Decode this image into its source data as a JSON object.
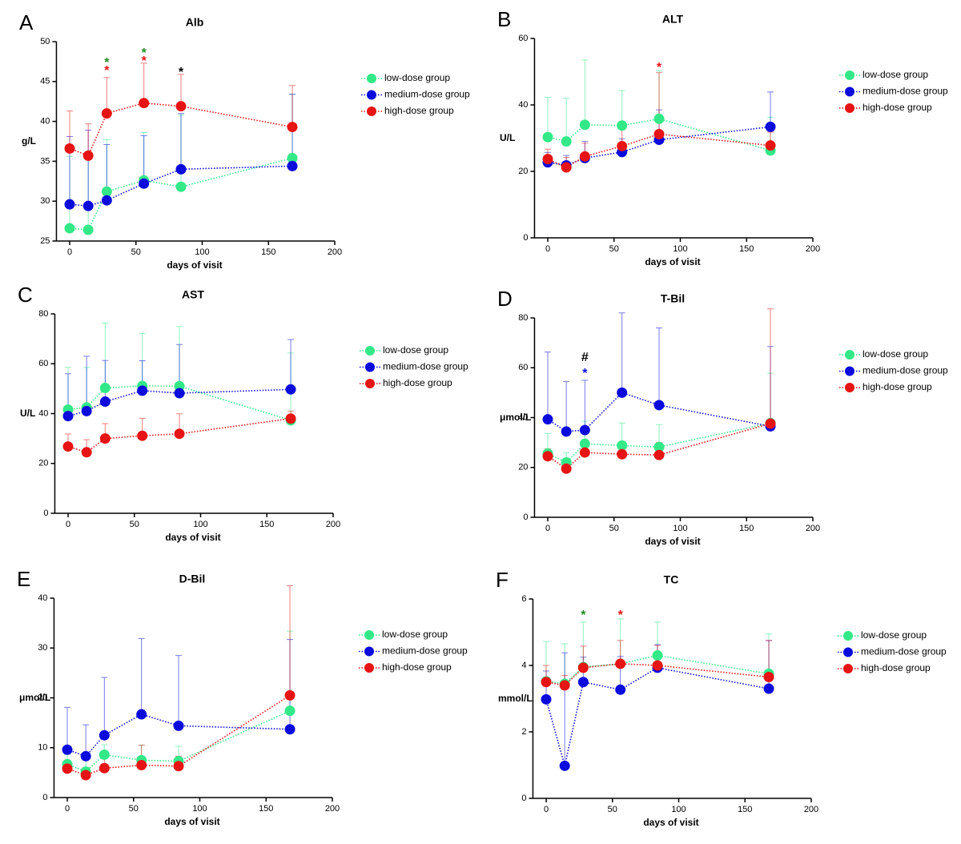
{
  "chart_data": [
    {
      "type": "line",
      "panel_label": "A",
      "title": "Alb",
      "xlabel": "days of visit",
      "ylabel": "g/L",
      "x": [
        0,
        14,
        28,
        56,
        84,
        168
      ],
      "xlim": [
        -10,
        200
      ],
      "xticks": [
        0,
        50,
        100,
        150,
        200
      ],
      "ylim": [
        25,
        50
      ],
      "yticks": [
        25,
        30,
        35,
        40,
        45,
        50
      ],
      "series": [
        {
          "name": "low-dose group",
          "color": "#33e887",
          "values": [
            26.6,
            26.4,
            31.2,
            32.6,
            31.8,
            35.4
          ],
          "errors": [
            9,
            9,
            6.5,
            6,
            9,
            8
          ]
        },
        {
          "name": "medium-dose group",
          "color": "#0b0bdc",
          "values": [
            29.6,
            29.4,
            30.1,
            32.2,
            34.0,
            34.4
          ],
          "errors": [
            8.5,
            9.5,
            7,
            6,
            7,
            9
          ]
        },
        {
          "name": "high-dose group",
          "color": "#e61414",
          "values": [
            36.6,
            35.7,
            41.0,
            42.3,
            41.9,
            39.3
          ],
          "errors": [
            4.7,
            4,
            4.5,
            5,
            4,
            5.2
          ]
        }
      ],
      "annotations": [
        {
          "text": "*",
          "x": 28,
          "y": 47.6,
          "color": "#228b22"
        },
        {
          "text": "*",
          "x": 28,
          "y": 46.6,
          "color": "#e61414"
        },
        {
          "text": "*",
          "x": 56,
          "y": 48.8,
          "color": "#228b22"
        },
        {
          "text": "*",
          "x": 56,
          "y": 47.8,
          "color": "#e61414"
        },
        {
          "text": "*",
          "x": 84,
          "y": 46.4,
          "color": "#000000"
        }
      ]
    },
    {
      "type": "line",
      "panel_label": "B",
      "title": "ALT",
      "xlabel": "days of visit",
      "ylabel": "U/L",
      "x": [
        0,
        14,
        28,
        56,
        84,
        168
      ],
      "xlim": [
        -10,
        200
      ],
      "xticks": [
        0,
        50,
        100,
        150,
        200
      ],
      "ylim": [
        0,
        60
      ],
      "yticks": [
        0,
        20,
        40,
        60
      ],
      "series": [
        {
          "name": "low-dose group",
          "color": "#33e887",
          "values": [
            30.3,
            29,
            34,
            33.8,
            35.8,
            26.3
          ],
          "errors": [
            12,
            13,
            19.5,
            10.5,
            14.5,
            10
          ]
        },
        {
          "name": "medium-dose group",
          "color": "#0b0bdc",
          "values": [
            22.7,
            21.8,
            24,
            25.8,
            29.5,
            33.4
          ],
          "errors": [
            3,
            3,
            5,
            4,
            9,
            10.5
          ]
        },
        {
          "name": "high-dose group",
          "color": "#e61414",
          "values": [
            23.7,
            21.2,
            24.5,
            27.6,
            31.2,
            27.8
          ],
          "errors": [
            3,
            3,
            4,
            5,
            18.5,
            4
          ]
        }
      ],
      "annotations": [
        {
          "text": "*",
          "x": 84,
          "y": 51.8,
          "color": "#e61414"
        }
      ]
    },
    {
      "type": "line",
      "panel_label": "C",
      "title": "AST",
      "xlabel": "days of visit",
      "ylabel": "U/L",
      "x": [
        0,
        14,
        28,
        56,
        84,
        168
      ],
      "xlim": [
        -10,
        200
      ],
      "xticks": [
        0,
        50,
        100,
        150,
        200
      ],
      "ylim": [
        0,
        80
      ],
      "yticks": [
        0,
        20,
        40,
        60,
        80
      ],
      "series": [
        {
          "name": "low-dose group",
          "color": "#33e887",
          "values": [
            41.6,
            42.5,
            50.3,
            51.1,
            51.0,
            37.3
          ],
          "errors": [
            17,
            16,
            26,
            21,
            24,
            27
          ]
        },
        {
          "name": "medium-dose group",
          "color": "#0b0bdc",
          "values": [
            39,
            41,
            44.8,
            49.2,
            48.2,
            49.7
          ],
          "errors": [
            17,
            22,
            16.5,
            12,
            19.5,
            20
          ]
        },
        {
          "name": "high-dose group",
          "color": "#e61414",
          "values": [
            26.8,
            24.5,
            30,
            31.1,
            31.9,
            38
          ],
          "errors": [
            5,
            5,
            6,
            7,
            8,
            3
          ]
        }
      ],
      "annotations": []
    },
    {
      "type": "line",
      "panel_label": "D",
      "title": "T-Bil",
      "xlabel": "days of visit",
      "ylabel": "μmol/L",
      "x": [
        0,
        14,
        28,
        56,
        84,
        168
      ],
      "xlim": [
        -10,
        200
      ],
      "xticks": [
        0,
        50,
        100,
        150,
        200
      ],
      "ylim": [
        0,
        80
      ],
      "yticks": [
        0,
        20,
        40,
        60,
        80
      ],
      "series": [
        {
          "name": "low-dose group",
          "color": "#33e887",
          "values": [
            25.6,
            22,
            29.5,
            28.8,
            28.2,
            37.8
          ],
          "errors": [
            8,
            4,
            9,
            9,
            9,
            20
          ]
        },
        {
          "name": "medium-dose group",
          "color": "#0b0bdc",
          "values": [
            39.3,
            34.4,
            35,
            50,
            45,
            36.5
          ],
          "errors": [
            27,
            20,
            20,
            32,
            31,
            32
          ]
        },
        {
          "name": "high-dose group",
          "color": "#e61414",
          "values": [
            24.5,
            19.5,
            26,
            25.3,
            25,
            37.6
          ],
          "errors": [
            3,
            3,
            3,
            5,
            5,
            46
          ]
        }
      ],
      "annotations": [
        {
          "text": "#",
          "x": 28,
          "y": 64,
          "color": "#000000"
        },
        {
          "text": "*",
          "x": 28,
          "y": 58.5,
          "color": "#0b0bdc"
        }
      ]
    },
    {
      "type": "line",
      "panel_label": "E",
      "title": "D-Bil",
      "xlabel": "days of visit",
      "ylabel": "μmol/L",
      "x": [
        0,
        14,
        28,
        56,
        84,
        168
      ],
      "xlim": [
        -10,
        200
      ],
      "xticks": [
        0,
        50,
        100,
        150,
        200
      ],
      "ylim": [
        0,
        40
      ],
      "yticks": [
        0,
        10,
        20,
        30,
        40
      ],
      "series": [
        {
          "name": "low-dose group",
          "color": "#33e887",
          "values": [
            6.7,
            5.2,
            8.6,
            7.5,
            7.3,
            17.4
          ],
          "errors": [
            2,
            3,
            2,
            3,
            3,
            16
          ]
        },
        {
          "name": "medium-dose group",
          "color": "#0b0bdc",
          "values": [
            9.6,
            8.3,
            12.5,
            16.7,
            14.4,
            13.7
          ],
          "errors": [
            8.5,
            6.3,
            11.6,
            15.2,
            14.1,
            18
          ]
        },
        {
          "name": "high-dose group",
          "color": "#e61414",
          "values": [
            5.8,
            4.5,
            5.9,
            6.5,
            6.3,
            20.5
          ],
          "errors": [
            1.5,
            1.5,
            2,
            4,
            2,
            22
          ]
        }
      ],
      "annotations": []
    },
    {
      "type": "line",
      "panel_label": "F",
      "title": "TC",
      "xlabel": "days of visit",
      "ylabel": "mmol/L",
      "x": [
        0,
        14,
        28,
        56,
        84,
        168
      ],
      "xlim": [
        -10,
        200
      ],
      "xticks": [
        0,
        50,
        100,
        150,
        200
      ],
      "ylim": [
        0,
        6
      ],
      "yticks": [
        0,
        2,
        4,
        6
      ],
      "series": [
        {
          "name": "low-dose group",
          "color": "#33e887",
          "values": [
            3.52,
            3.45,
            3.95,
            4.05,
            4.3,
            3.75
          ],
          "errors": [
            1.2,
            1.2,
            1.35,
            1.35,
            1,
            1.2
          ]
        },
        {
          "name": "medium-dose group",
          "color": "#0b0bdc",
          "values": [
            2.98,
            0.98,
            3.5,
            3.27,
            3.93,
            3.3
          ],
          "errors": [
            0.85,
            3.4,
            0.75,
            1,
            0.7,
            1.45
          ]
        },
        {
          "name": "high-dose group",
          "color": "#e61414",
          "values": [
            3.5,
            3.4,
            3.93,
            4.05,
            4.0,
            3.65
          ],
          "errors": [
            0.5,
            0.3,
            0.65,
            0.7,
            0.6,
            1.1
          ]
        }
      ],
      "annotations": [
        {
          "text": "*",
          "x": 28,
          "y": 5.57,
          "color": "#228b22"
        },
        {
          "text": "*",
          "x": 56,
          "y": 5.57,
          "color": "#e61414"
        }
      ]
    }
  ]
}
